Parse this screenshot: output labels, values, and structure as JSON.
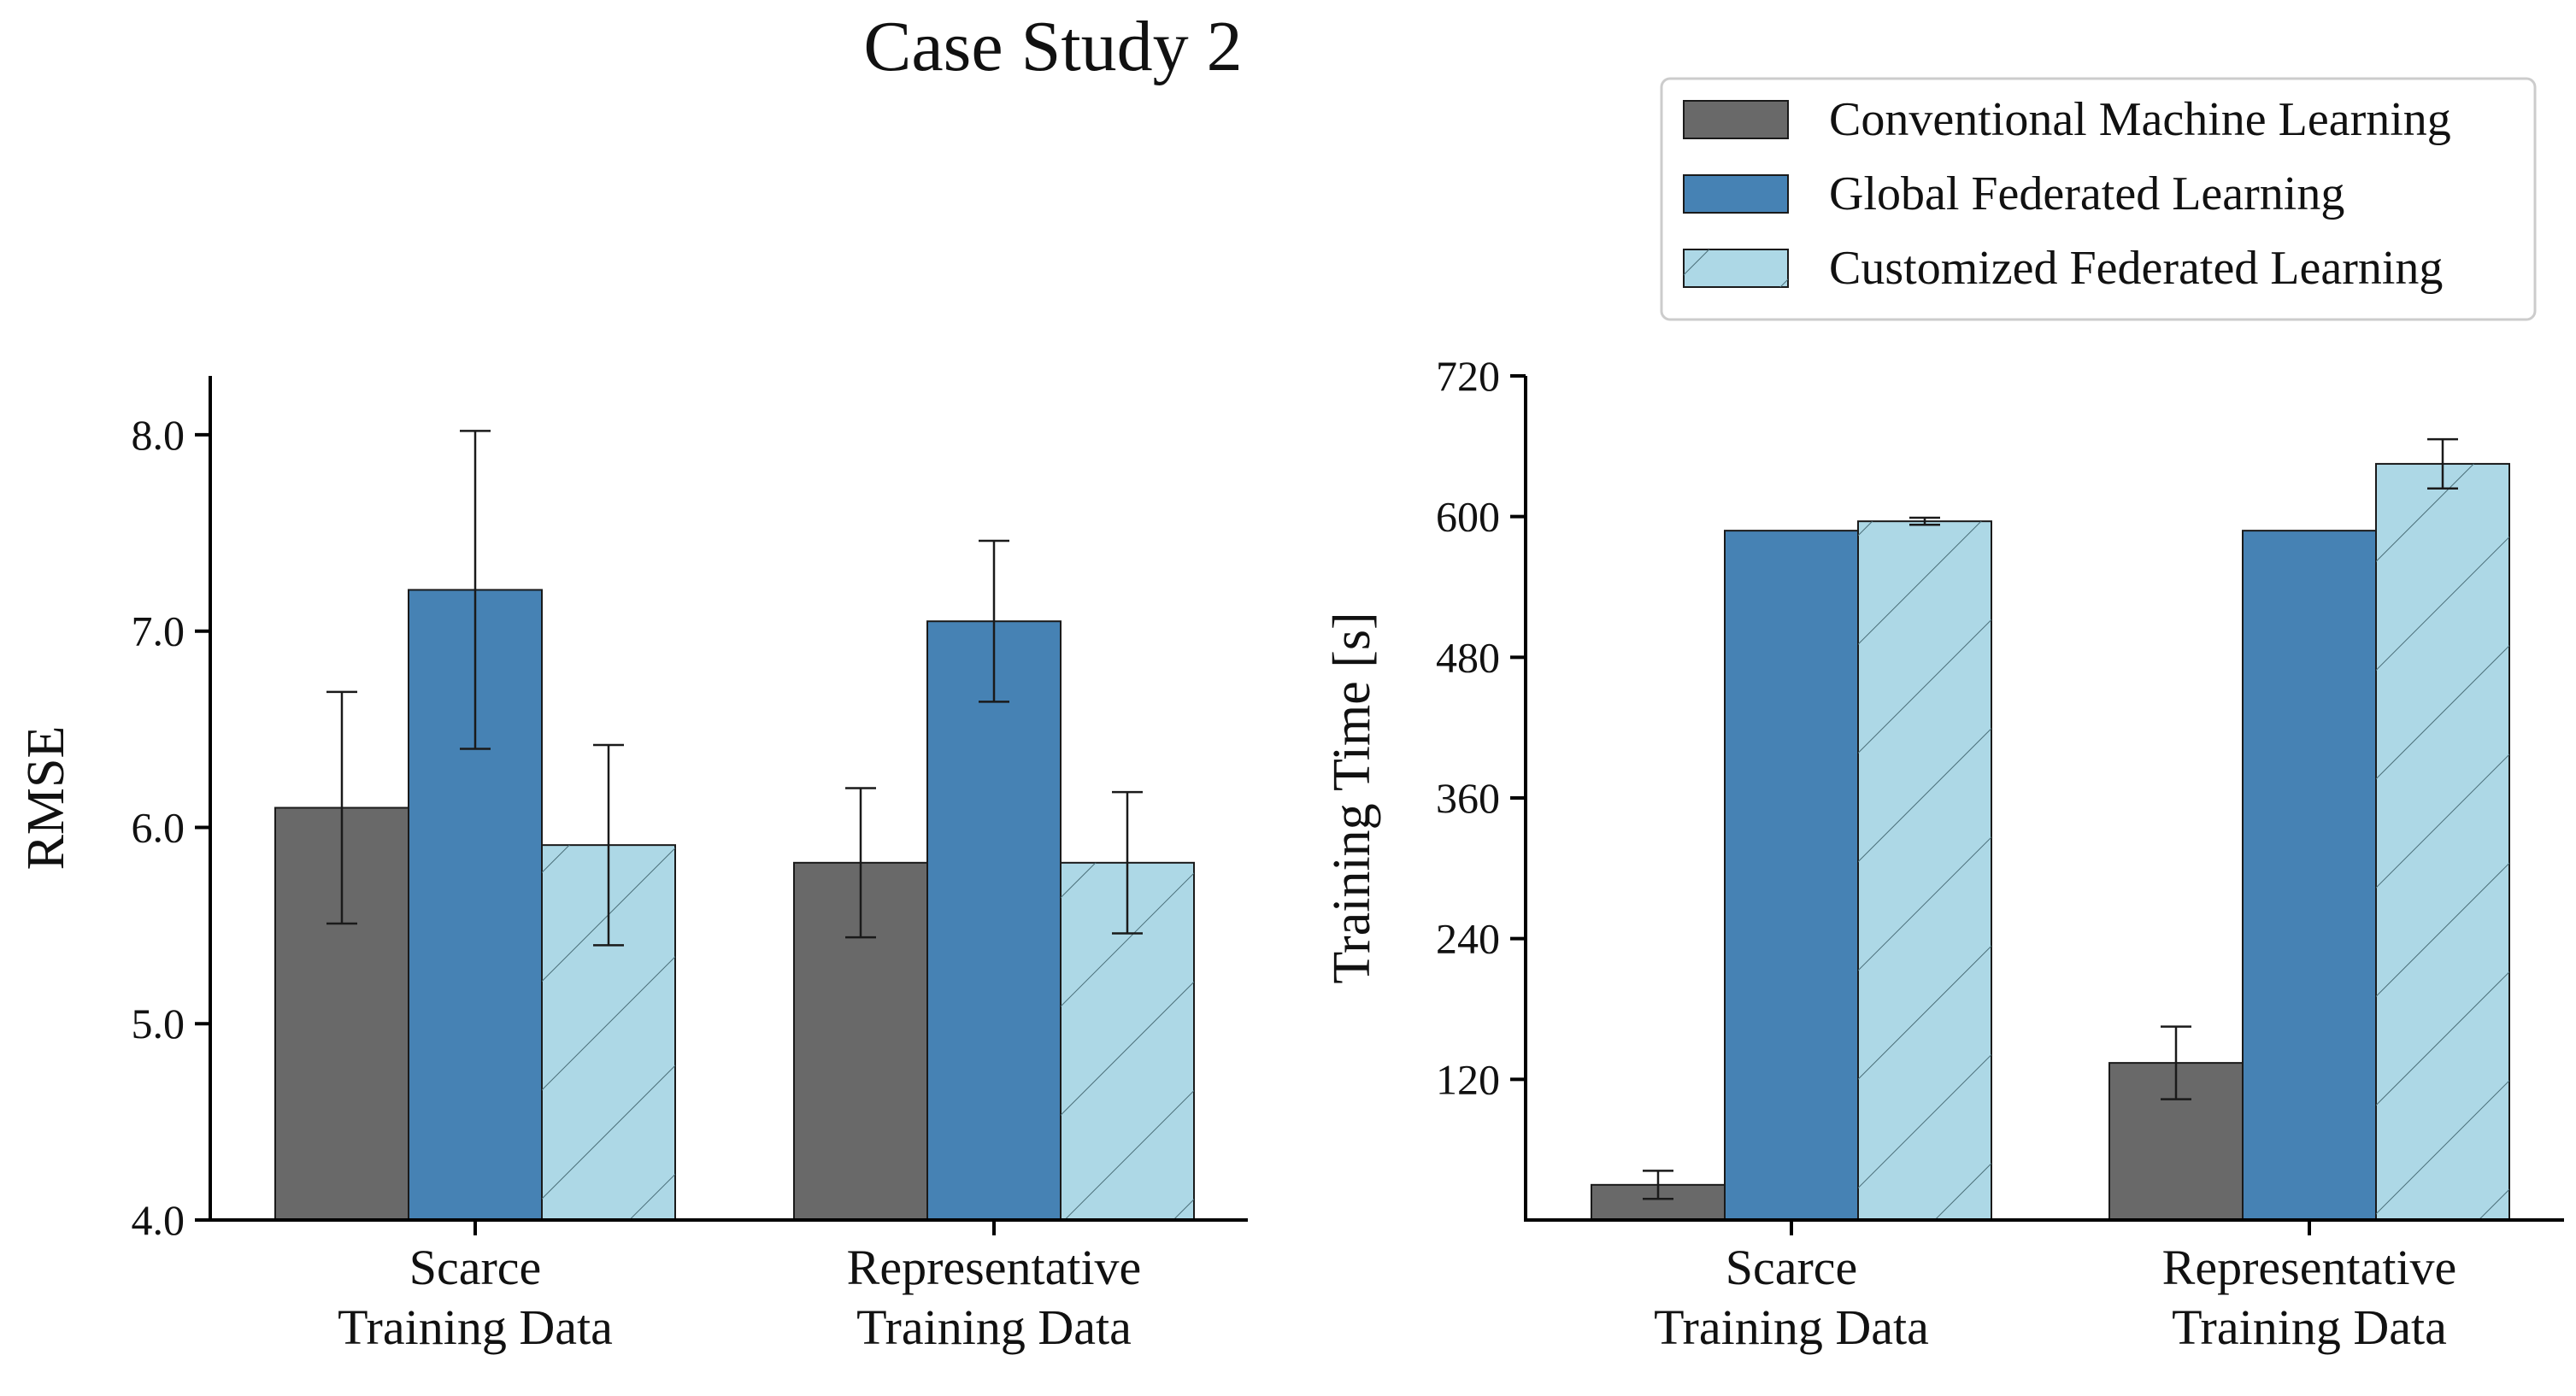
{
  "figure": {
    "title": "Case Study 2",
    "legend": [
      {
        "label": "Conventional Machine Learning",
        "color": "#696969",
        "hatch": false
      },
      {
        "label": "Global Federated Learning",
        "color": "#4682b4",
        "hatch": false
      },
      {
        "label": "Customized Federated Learning",
        "color": "#add8e6",
        "hatch": true
      }
    ]
  },
  "chart_data": [
    {
      "type": "bar",
      "title": "",
      "ylabel": "RMSE",
      "xlabel": "",
      "ylim": [
        4.0,
        8.3
      ],
      "yticks": [
        4.0,
        5.0,
        6.0,
        7.0,
        8.0
      ],
      "ytick_labels": [
        "4.0",
        "5.0",
        "6.0",
        "7.0",
        "8.0"
      ],
      "categories": [
        [
          "Scarce",
          "Training Data"
        ],
        [
          "Representative",
          "Training Data"
        ]
      ],
      "series": [
        {
          "name": "Conventional Machine Learning",
          "values": [
            6.1,
            5.82
          ],
          "errors": [
            0.59,
            0.38
          ]
        },
        {
          "name": "Global Federated Learning",
          "values": [
            7.21,
            7.05
          ],
          "errors": [
            0.81,
            0.41
          ]
        },
        {
          "name": "Customized Federated Learning",
          "values": [
            5.91,
            5.82
          ],
          "errors": [
            0.51,
            0.36
          ]
        }
      ]
    },
    {
      "type": "bar",
      "title": "",
      "ylabel": "Training Time [s]",
      "xlabel": "",
      "ylim": [
        0,
        720
      ],
      "yticks": [
        120,
        240,
        360,
        480,
        600,
        720
      ],
      "ytick_labels": [
        "120",
        "240",
        "360",
        "480",
        "600",
        "720"
      ],
      "categories": [
        [
          "Scarce",
          "Training Data"
        ],
        [
          "Representative",
          "Training Data"
        ]
      ],
      "series": [
        {
          "name": "Conventional Machine Learning",
          "values": [
            30,
            134
          ],
          "errors": [
            12,
            31
          ]
        },
        {
          "name": "Global Federated Learning",
          "values": [
            588,
            588
          ],
          "errors": [
            0,
            0
          ]
        },
        {
          "name": "Customized Federated Learning",
          "values": [
            596,
            645
          ],
          "errors": [
            3,
            21
          ]
        }
      ]
    }
  ]
}
